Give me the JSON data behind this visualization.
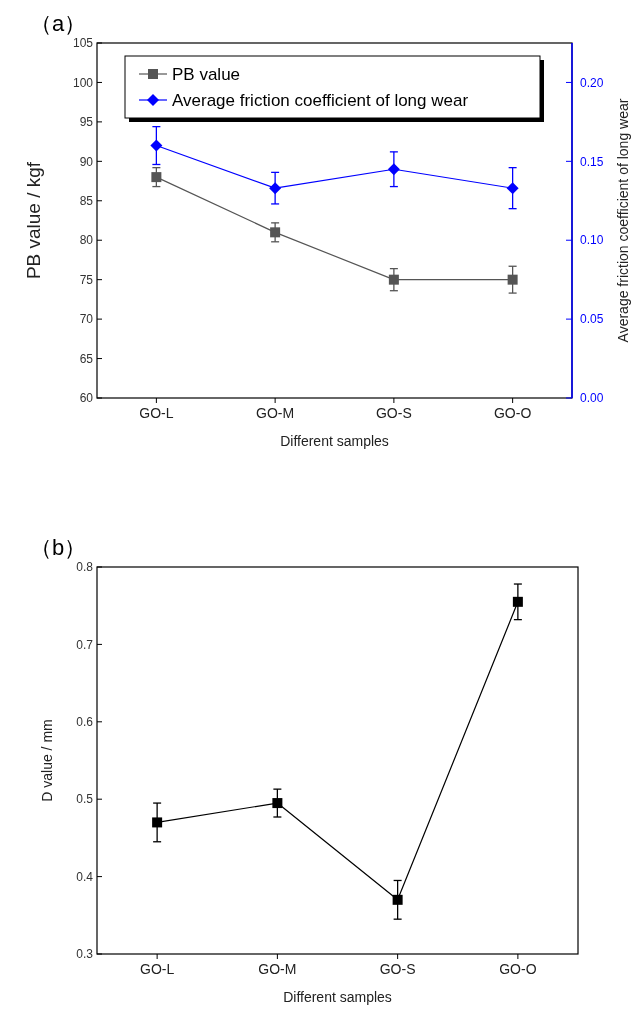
{
  "chart_data": [
    {
      "type": "line",
      "title": "（a）",
      "xlabel": "Different samples",
      "ylabel": "PB value / kgf",
      "y2label": "Average friction coefficient of long wear",
      "categories": [
        "GO-L",
        "GO-M",
        "GO-S",
        "GO-O"
      ],
      "ylim": [
        60,
        105
      ],
      "yticks": [
        60,
        65,
        70,
        75,
        80,
        85,
        90,
        95,
        100,
        105
      ],
      "y2lim": [
        0,
        0.225
      ],
      "y2ticks": [
        {
          "value": 0,
          "label": "0.00"
        },
        {
          "value": 0.05,
          "label": "0.05"
        },
        {
          "value": 0.1,
          "label": "0.10"
        },
        {
          "value": 0.15,
          "label": "0.15"
        },
        {
          "value": 0.2,
          "label": "0.20"
        }
      ],
      "legend": "top",
      "series": [
        {
          "name": "PB value",
          "color": "#555555",
          "marker": "square",
          "values": [
            88,
            81,
            75,
            75
          ],
          "errors": [
            1.2,
            1.2,
            1.4,
            1.7
          ]
        },
        {
          "name": "Average friction coefficient of long wear",
          "color": "#0000ff",
          "marker": "diamond",
          "axis": "y2",
          "values": [
            0.16,
            0.133,
            0.145,
            0.133
          ],
          "errors": [
            0.012,
            0.01,
            0.011,
            0.013
          ]
        }
      ]
    },
    {
      "type": "line",
      "title": "（b）",
      "xlabel": "Different samples",
      "ylabel": "D value / mm",
      "categories": [
        "GO-L",
        "GO-M",
        "GO-S",
        "GO-O"
      ],
      "ylim": [
        0.3,
        0.8
      ],
      "yticks": [
        0.3,
        0.4,
        0.5,
        0.6,
        0.7,
        0.8
      ],
      "series": [
        {
          "color": "#000000",
          "marker": "square",
          "values": [
            0.47,
            0.495,
            0.37,
            0.755
          ],
          "errors": [
            0.025,
            0.018,
            0.025,
            0.023
          ]
        }
      ]
    }
  ]
}
